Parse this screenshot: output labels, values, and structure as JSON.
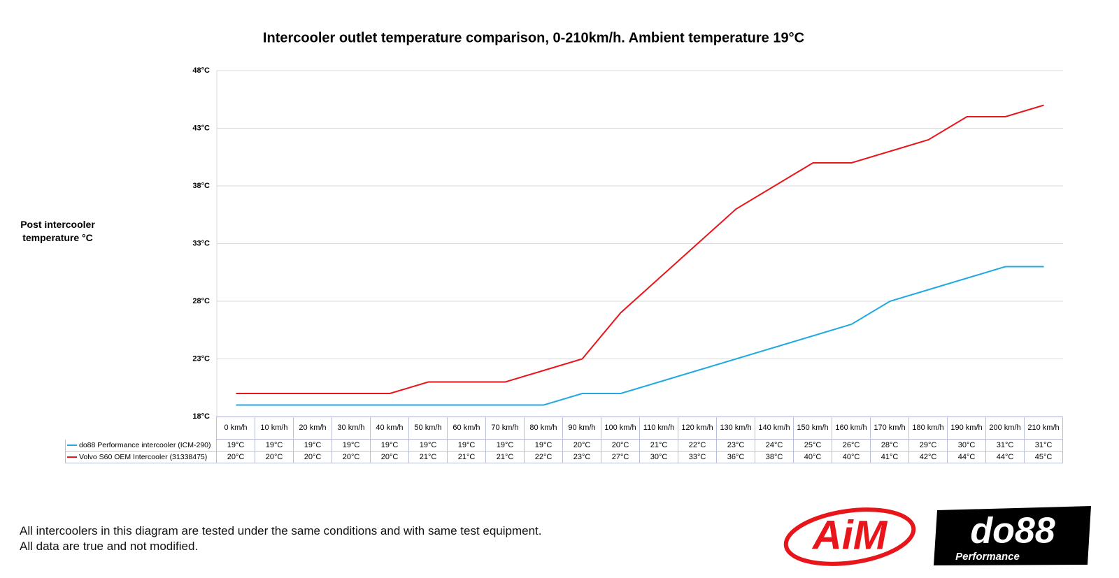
{
  "chart_data": {
    "type": "line",
    "title": "Intercooler outlet temperature comparison, 0-210km/h. Ambient temperature 19°C",
    "y_label": "Post intercooler temperature °C",
    "categories": [
      "0 km/h",
      "10 km/h",
      "20 km/h",
      "30 km/h",
      "40 km/h",
      "50 km/h",
      "60 km/h",
      "70 km/h",
      "80 km/h",
      "90 km/h",
      "100 km/h",
      "110 km/h",
      "120 km/h",
      "130 km/h",
      "140 km/h",
      "150 km/h",
      "160 km/h",
      "170 km/h",
      "180 km/h",
      "190 km/h",
      "200 km/h",
      "210 km/h"
    ],
    "series": [
      {
        "name": "do88 Performance intercooler (ICM-290)",
        "color": "#22a9e1",
        "values": [
          19,
          19,
          19,
          19,
          19,
          19,
          19,
          19,
          19,
          20,
          20,
          21,
          22,
          23,
          24,
          25,
          26,
          28,
          29,
          30,
          31,
          31
        ],
        "value_labels": [
          "19°C",
          "19°C",
          "19°C",
          "19°C",
          "19°C",
          "19°C",
          "19°C",
          "19°C",
          "19°C",
          "20°C",
          "20°C",
          "21°C",
          "22°C",
          "23°C",
          "24°C",
          "25°C",
          "26°C",
          "28°C",
          "29°C",
          "30°C",
          "31°C",
          "31°C"
        ]
      },
      {
        "name": "Volvo S60 OEM Intercooler (31338475)",
        "color": "#e8161b",
        "values": [
          20,
          20,
          20,
          20,
          20,
          21,
          21,
          21,
          22,
          23,
          27,
          30,
          33,
          36,
          38,
          40,
          40,
          41,
          42,
          44,
          44,
          45
        ],
        "value_labels": [
          "20°C",
          "20°C",
          "20°C",
          "20°C",
          "20°C",
          "21°C",
          "21°C",
          "21°C",
          "22°C",
          "23°C",
          "27°C",
          "30°C",
          "33°C",
          "36°C",
          "38°C",
          "40°C",
          "40°C",
          "41°C",
          "42°C",
          "44°C",
          "44°C",
          "45°C"
        ]
      }
    ],
    "ylim": [
      18,
      48
    ],
    "yticks": [
      {
        "value": 18,
        "label": "18°C"
      },
      {
        "value": 23,
        "label": "23°C"
      },
      {
        "value": 28,
        "label": "28°C"
      },
      {
        "value": 33,
        "label": "33°C"
      },
      {
        "value": 38,
        "label": "38°C"
      },
      {
        "value": 43,
        "label": "43°C"
      },
      {
        "value": 48,
        "label": "48°C"
      }
    ],
    "grid": true
  },
  "notes": [
    "All intercoolers in this diagram are tested under the same conditions and with same test equipment.",
    "All data are true and not modified."
  ],
  "logos": {
    "aim": "AiM",
    "do88": "do88",
    "do88_sub": "Performance"
  }
}
